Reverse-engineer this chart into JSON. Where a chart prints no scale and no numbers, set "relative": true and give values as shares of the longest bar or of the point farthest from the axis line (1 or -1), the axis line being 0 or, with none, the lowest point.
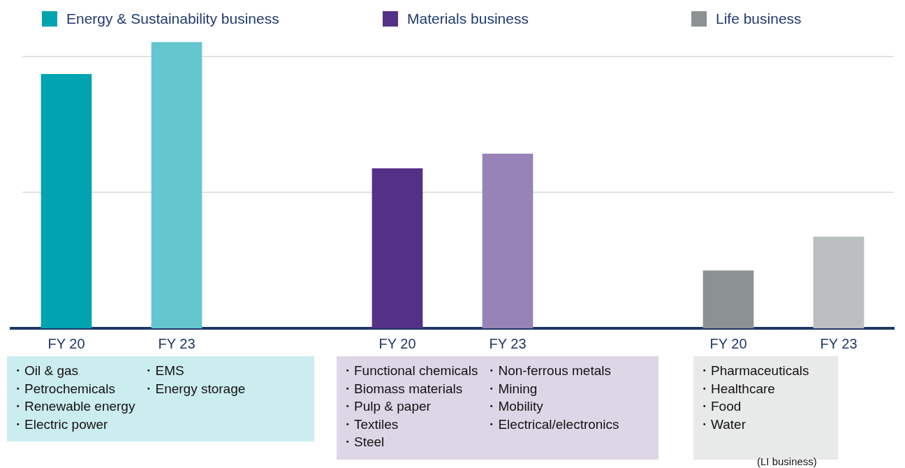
{
  "chart_data": {
    "type": "bar",
    "relative": true,
    "categories": [
      "FY 20",
      "FY 23",
      null,
      "FY 20",
      "FY 23",
      null,
      "FY 20",
      "FY 23"
    ],
    "series": [
      {
        "name": "Energy & Sustainability business",
        "color": "#00a3b0",
        "colors": [
          "#00a3b0",
          "#64c6cf",
          null,
          null,
          null,
          null,
          null,
          null
        ],
        "values": [
          0.888,
          1,
          null,
          null,
          null,
          null,
          null,
          null
        ]
      },
      {
        "name": "Materials business",
        "color": "#533186",
        "colors": [
          null,
          null,
          null,
          "#533186",
          "#9783b7",
          null,
          null,
          null
        ],
        "values": [
          null,
          null,
          null,
          0.559,
          0.61,
          null,
          null,
          null
        ]
      },
      {
        "name": "Life business",
        "color": "#8c9191",
        "colors": [
          null,
          null,
          null,
          null,
          null,
          null,
          "#8c9191",
          "#bcbfbf"
        ],
        "values": [
          null,
          null,
          null,
          null,
          null,
          null,
          0.202,
          0.32
        ]
      }
    ],
    "ref_lines": [
      {
        "axis": "y",
        "value": 0.475,
        "color": "#d9d9d9"
      },
      {
        "axis": "y",
        "value": 0.949,
        "color": "#d9d9d9"
      }
    ],
    "legend": "top",
    "annotations": [
      "・Oil & gas\n・Petrochemicals\n・Renewable energy\n・Electric power\n\n・EMS\n・Energy storage",
      "・Functional chemicals\n・Biomass materials\n・Pulp & paper\n・Textiles\n・Steel\n\n・Non-ferrous metals\n・Mining\n・Mobility\n・Electrical/electronics",
      "・Pharmaceuticals\n・Healthcare\n・Food\n・Water",
      "(LI business)"
    ]
  }
}
